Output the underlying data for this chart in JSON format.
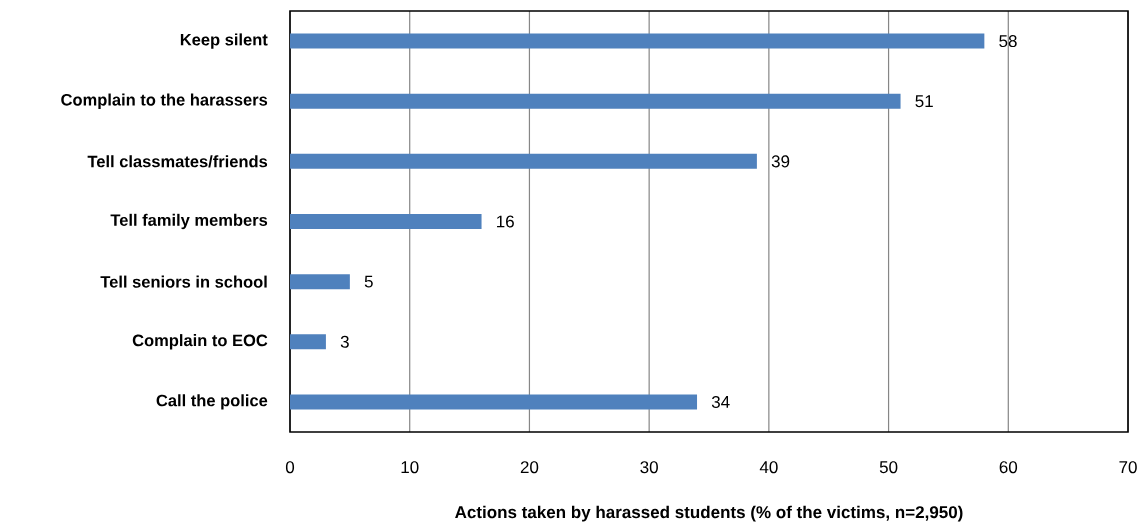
{
  "chart_data": {
    "type": "bar",
    "orientation": "horizontal",
    "categories": [
      "Keep silent",
      "Complain to the harassers",
      "Tell classmates/friends",
      "Tell family members",
      "Tell seniors in school",
      "Complain to EOC",
      "Call the police"
    ],
    "values": [
      58,
      51,
      39,
      16,
      5,
      3,
      34
    ],
    "color": "#4f81bd",
    "xlabel": "Actions taken by harassed students (% of the victims, n=2,950)",
    "xlim": [
      0,
      70
    ],
    "xticks": [
      0,
      10,
      20,
      30,
      40,
      50,
      60,
      70
    ],
    "grid": "x",
    "data_labels": true
  }
}
